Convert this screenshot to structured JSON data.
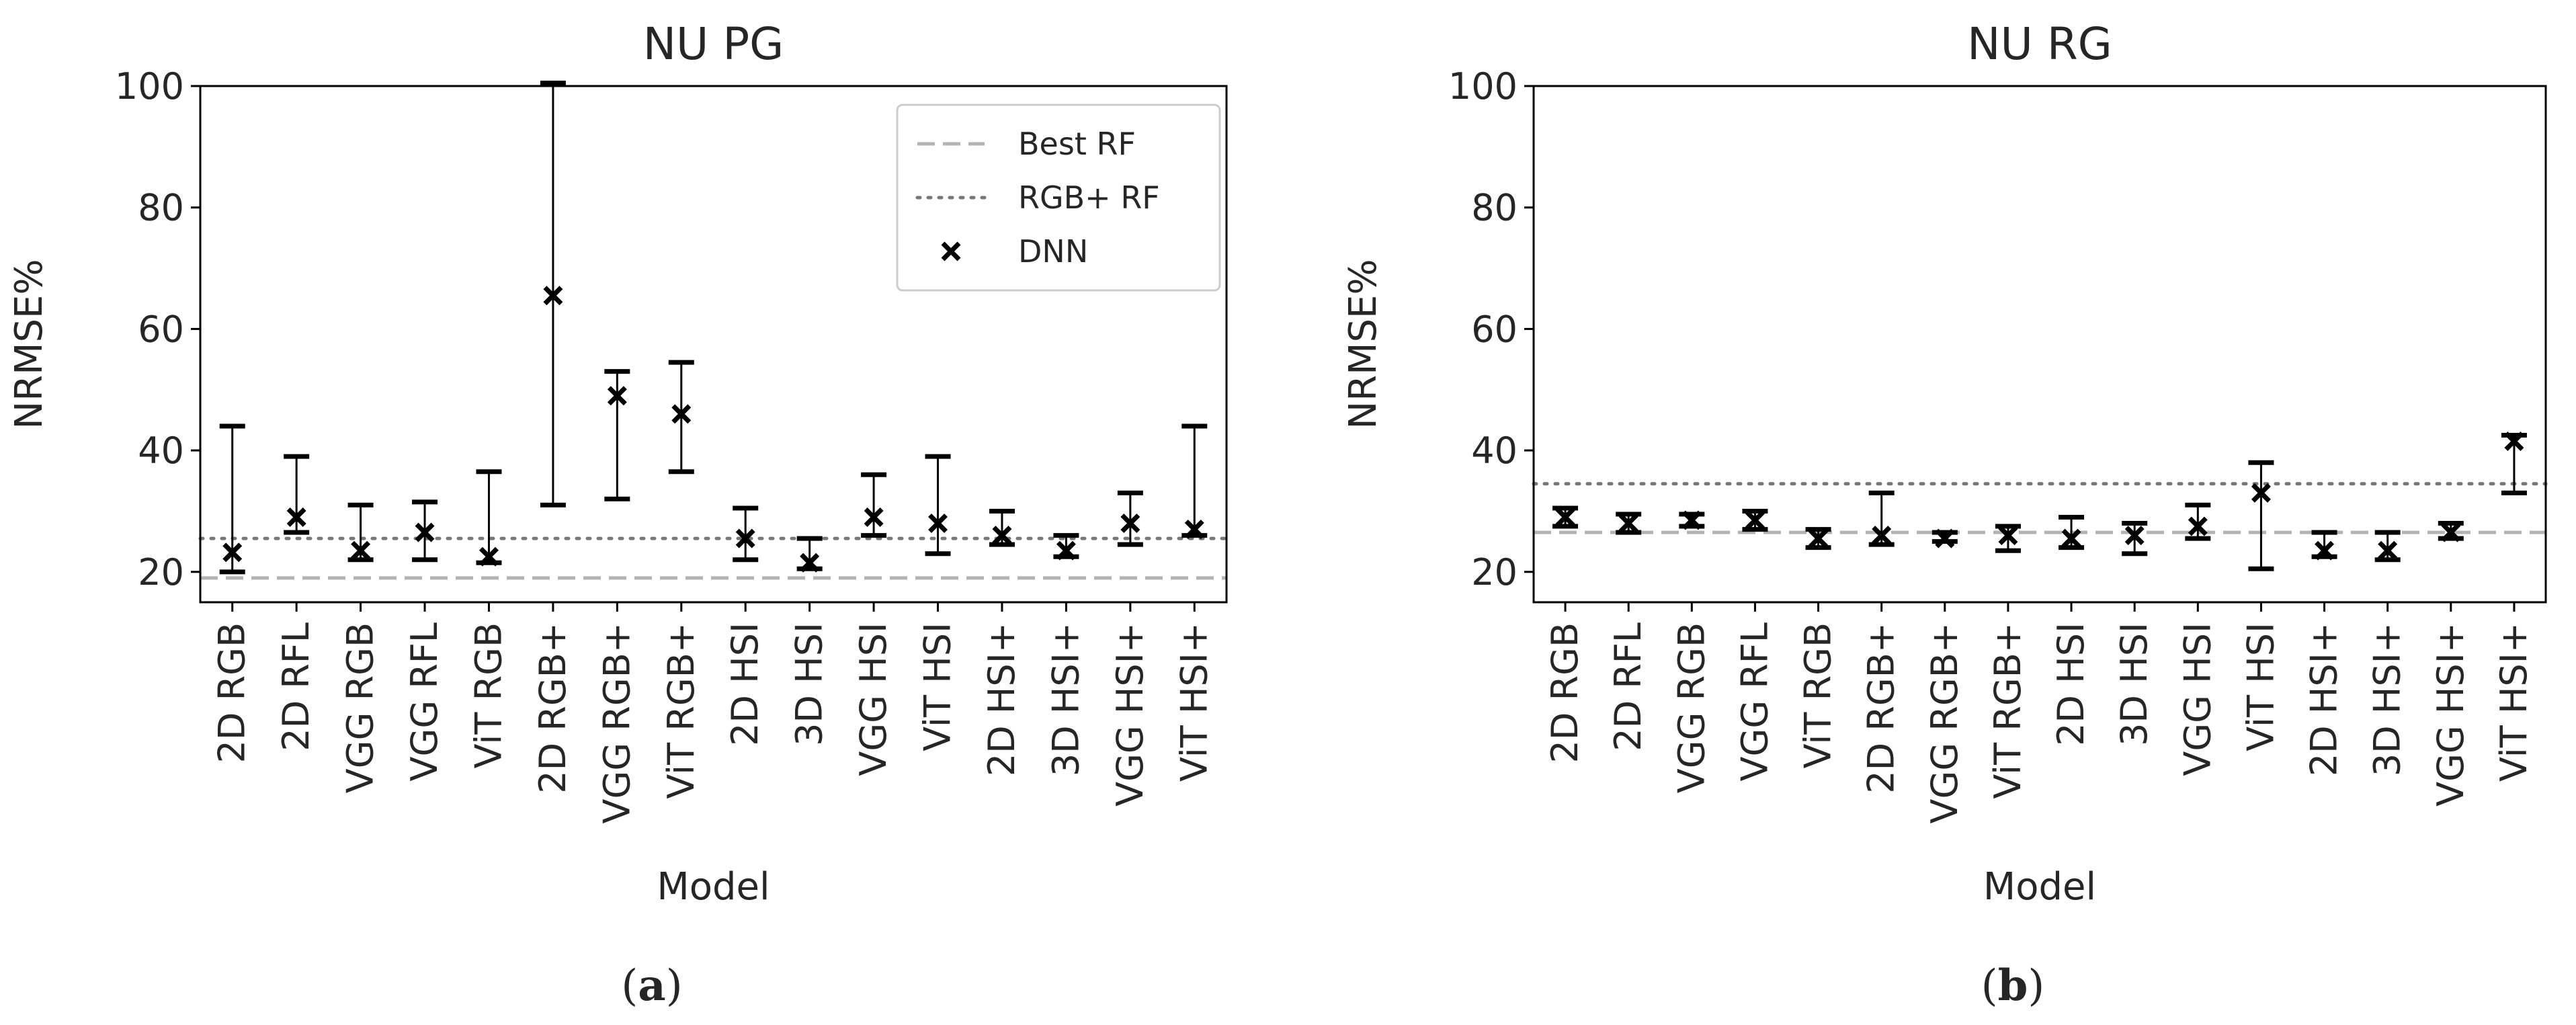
{
  "chart_data": [
    {
      "type": "errorbar-scatter",
      "title": "NU PG",
      "xlabel": "Model",
      "ylabel": "NRMSE%",
      "ylim": [
        15,
        100
      ],
      "yticks": [
        20,
        40,
        60,
        80,
        100
      ],
      "panel_label_parts": [
        "(",
        "a",
        ")"
      ],
      "categories": [
        "2D RGB",
        "2D RFL",
        "VGG RGB",
        "VGG RFL",
        "ViT RGB",
        "2D RGB+",
        "VGG RGB+",
        "ViT RGB+",
        "2D HSI",
        "3D HSI",
        "VGG HSI",
        "ViT HSI",
        "2D HSI+",
        "3D HSI+",
        "VGG HSI+",
        "ViT HSI+"
      ],
      "series": [
        {
          "name": "DNN",
          "marker": "x",
          "values": [
            23.2,
            29.0,
            23.5,
            26.5,
            22.5,
            65.5,
            49.0,
            46.0,
            25.5,
            21.5,
            29.0,
            28.0,
            26.0,
            23.5,
            28.0,
            27.0
          ],
          "lower": [
            20.0,
            26.5,
            22.0,
            22.0,
            21.5,
            31.0,
            32.0,
            36.5,
            22.0,
            20.5,
            26.0,
            23.0,
            24.5,
            22.5,
            24.5,
            26.0
          ],
          "upper": [
            44.0,
            39.0,
            31.0,
            31.5,
            36.5,
            100.5,
            53.0,
            54.5,
            30.5,
            25.5,
            36.0,
            39.0,
            30.0,
            26.0,
            33.0,
            44.0
          ]
        }
      ],
      "reference_lines": [
        {
          "name": "Best RF",
          "style": "dashed",
          "value": 19.0,
          "color": "#b3b3b3"
        },
        {
          "name": "RGB+ RF",
          "style": "dotted",
          "value": 25.5,
          "color": "#777777"
        }
      ],
      "legend": {
        "position": "top-right",
        "entries": [
          "Best RF",
          "RGB+ RF",
          "DNN"
        ]
      }
    },
    {
      "type": "errorbar-scatter",
      "title": "NU RG",
      "xlabel": "Model",
      "ylabel": "NRMSE%",
      "ylim": [
        15,
        100
      ],
      "yticks": [
        20,
        40,
        60,
        80,
        100
      ],
      "panel_label_parts": [
        "(",
        "b",
        ")"
      ],
      "categories": [
        "2D RGB",
        "2D RFL",
        "VGG RGB",
        "VGG RFL",
        "ViT RGB",
        "2D RGB+",
        "VGG RGB+",
        "ViT RGB+",
        "2D HSI",
        "3D HSI",
        "VGG HSI",
        "ViT HSI",
        "2D HSI+",
        "3D HSI+",
        "VGG HSI+",
        "ViT HSI+"
      ],
      "series": [
        {
          "name": "DNN",
          "marker": "x",
          "values": [
            29.0,
            28.0,
            28.5,
            28.5,
            25.5,
            26.0,
            25.5,
            26.0,
            25.5,
            26.0,
            27.5,
            33.0,
            23.5,
            23.5,
            26.5,
            41.5
          ],
          "lower": [
            27.5,
            26.5,
            27.5,
            27.0,
            24.0,
            24.5,
            25.0,
            23.5,
            24.0,
            23.0,
            25.5,
            20.5,
            22.5,
            22.0,
            25.5,
            33.0
          ],
          "upper": [
            30.5,
            29.5,
            29.5,
            30.0,
            27.0,
            33.0,
            26.5,
            27.5,
            29.0,
            28.0,
            31.0,
            38.0,
            26.5,
            26.5,
            28.0,
            42.5
          ]
        }
      ],
      "reference_lines": [
        {
          "name": "Best RF",
          "style": "dashed",
          "value": 26.5,
          "color": "#b3b3b3"
        },
        {
          "name": "RGB+ RF",
          "style": "dotted",
          "value": 34.5,
          "color": "#777777"
        }
      ]
    }
  ]
}
